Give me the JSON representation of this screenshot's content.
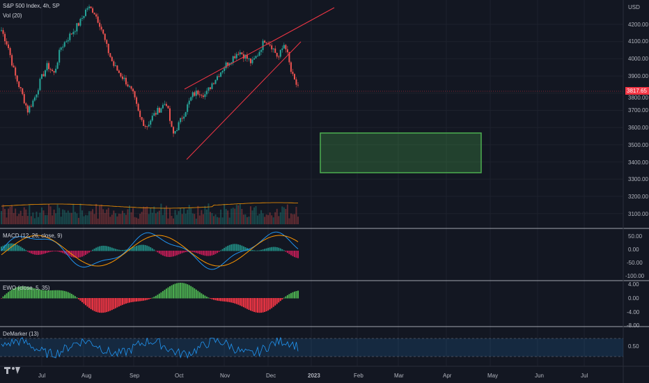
{
  "header": {
    "title": "S&P 500 Index, 4h, SP",
    "volume": "Vol (20)"
  },
  "price_axis": {
    "currency": "USD",
    "ticks": [
      "4200.00",
      "4100.00",
      "4000.00",
      "3900.00",
      "3800.00",
      "3700.00",
      "3600.00",
      "3500.00",
      "3400.00",
      "3300.00",
      "3200.00",
      "3100.00"
    ],
    "last_price": "3817.65"
  },
  "macd": {
    "label": "MACD (12, 26, close, 9)",
    "ticks": [
      "50.00",
      "0.00",
      "-50.00",
      "-100.00"
    ]
  },
  "ewo": {
    "label": "EWO (close, 5, 35)",
    "ticks": [
      "4.00",
      "0.00",
      "-4.00",
      "-8.00"
    ]
  },
  "demarker": {
    "label": "DeMarker (13)",
    "ticks": [
      "0.50"
    ]
  },
  "time_axis": [
    "Jul",
    "Aug",
    "Sep",
    "Oct",
    "Nov",
    "Dec",
    "2023",
    "Feb",
    "Mar",
    "Apr",
    "May",
    "Jun",
    "Jul"
  ],
  "colors": {
    "background": "#131722",
    "up": "#26a69a",
    "down": "#ef5350",
    "wedge": "#f23645",
    "target_zone": "#4caf50"
  },
  "chart_data": {
    "type": "candlestick",
    "title": "S&P 500 Index, 4h, SP",
    "ylim": [
      3050,
      4290
    ],
    "x": [
      "Jun",
      "Jul",
      "Aug",
      "Sep",
      "Oct",
      "Nov",
      "Dec"
    ],
    "close_path": [
      4150,
      4060,
      3900,
      3800,
      3690,
      3760,
      3870,
      3950,
      3900,
      4050,
      4100,
      4150,
      4200,
      4280,
      4260,
      4180,
      4050,
      3950,
      3900,
      3850,
      3780,
      3650,
      3600,
      3660,
      3700,
      3740,
      3550,
      3620,
      3700,
      3780,
      3800,
      3780,
      3850,
      3900,
      3950,
      3990,
      4030,
      4000,
      3960,
      4020,
      4100,
      4060,
      3990,
      4080,
      3900,
      3817.65
    ],
    "target_zone": {
      "y_top": 3570,
      "y_bottom": 3340,
      "x_start": "2023-01-01",
      "x_end": "2023-04-01"
    }
  }
}
